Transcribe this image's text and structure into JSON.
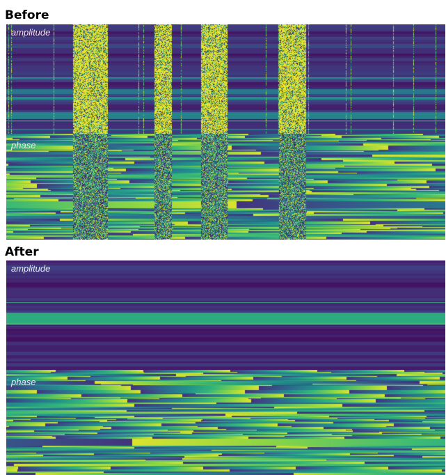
{
  "before": {
    "title": "Before",
    "amplitude_label": "amplitude",
    "phase_label": "phase"
  },
  "after": {
    "title": "After",
    "amplitude_label": "amplitude",
    "phase_label": "phase"
  },
  "colors": {
    "dark": "#440154",
    "deep": "#3b2f80",
    "blue": "#2c6f8e",
    "teal": "#21908c",
    "green": "#5ec962",
    "yellow": "#fde725"
  }
}
